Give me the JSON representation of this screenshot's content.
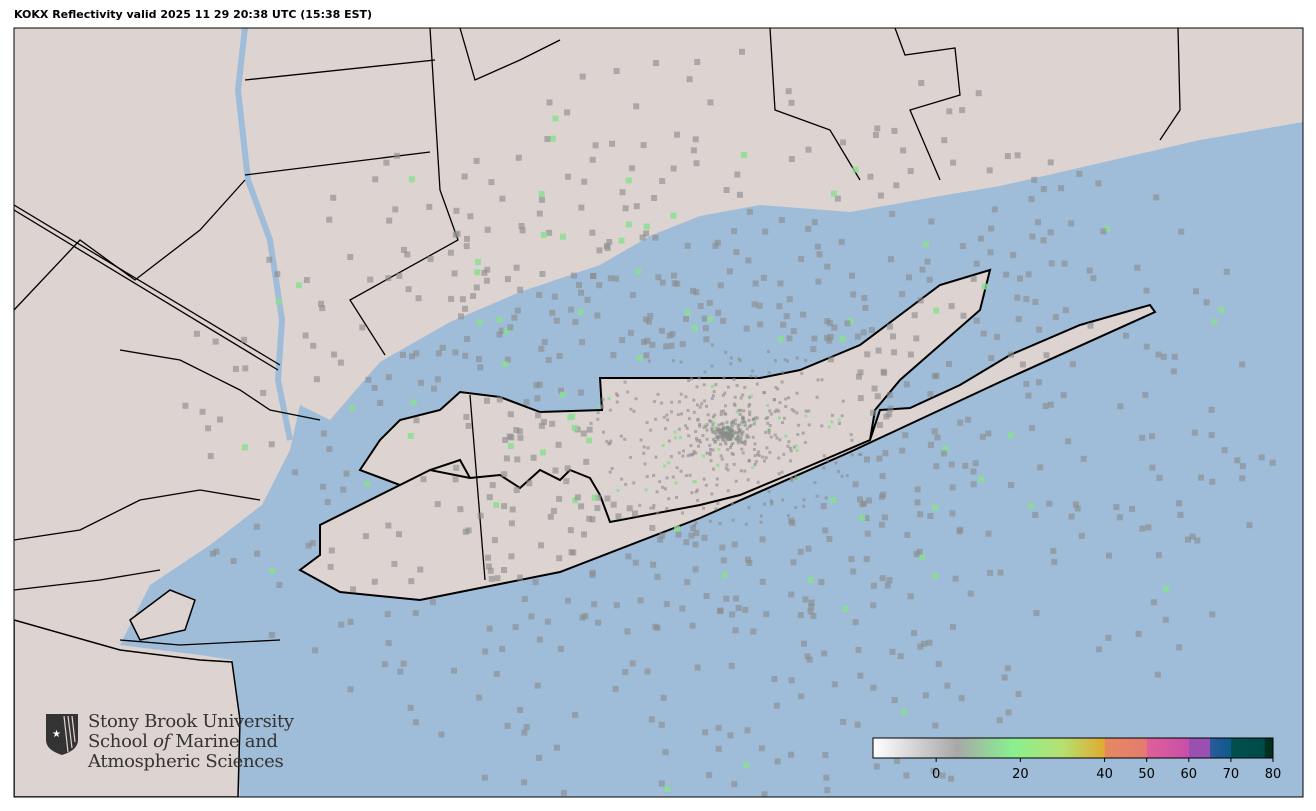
{
  "title": "KOKX Reflectivity valid 2025 11 29 20:38 UTC (15:38 EST)",
  "logo": {
    "line1": "Stony Brook University",
    "line2_a": "School ",
    "line2_b": "of",
    "line2_c": " Marine and",
    "line3": "Atmospheric Sciences"
  },
  "colors": {
    "land": "#ddd3d1",
    "water": "#9fbcd8",
    "border": "#000000"
  },
  "radar_site": "KOKX",
  "colorbar": {
    "min": -15,
    "max": 80,
    "ticks": [
      0,
      20,
      40,
      50,
      60,
      70,
      80
    ],
    "stops": [
      {
        "v": -15,
        "c": "#ffffff"
      },
      {
        "v": 5,
        "c": "#a8a8a8"
      },
      {
        "v": 18,
        "c": "#88f090"
      },
      {
        "v": 30,
        "c": "#b6e070"
      },
      {
        "v": 40,
        "c": "#e0aa30"
      },
      {
        "v": 40.1,
        "c": "#e58a60"
      },
      {
        "v": 50,
        "c": "#e57a70"
      },
      {
        "v": 50.1,
        "c": "#e0609a"
      },
      {
        "v": 60,
        "c": "#c84fa8"
      },
      {
        "v": 60.1,
        "c": "#9a50b0"
      },
      {
        "v": 65,
        "c": "#9a50b0"
      },
      {
        "v": 65.1,
        "c": "#2b5a9c"
      },
      {
        "v": 70,
        "c": "#0d5a8a"
      },
      {
        "v": 70.1,
        "c": "#005050"
      },
      {
        "v": 78,
        "c": "#004a4a"
      },
      {
        "v": 78.1,
        "c": "#003020"
      },
      {
        "v": 80,
        "c": "#003020"
      }
    ]
  }
}
